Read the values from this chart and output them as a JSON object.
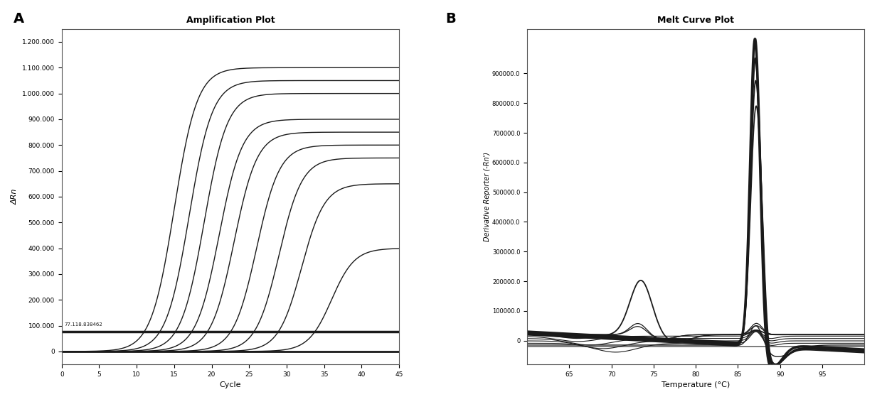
{
  "panel_A": {
    "title": "Amplification Plot",
    "xlabel": "Cycle",
    "ylabel": "ΔRn",
    "xlim": [
      0,
      45
    ],
    "ylim": [
      -50000,
      1250000
    ],
    "yticks": [
      0,
      100000,
      200000,
      300000,
      400000,
      500000,
      600000,
      700000,
      800000,
      900000,
      1000000,
      1100000,
      1200000
    ],
    "xticks": [
      0,
      5,
      10,
      15,
      20,
      25,
      30,
      35,
      40,
      45
    ],
    "threshold_y": 77118,
    "threshold_label": "77.118.838462",
    "num_curves": 9,
    "curve_shifts": [
      15,
      17,
      19,
      21,
      23,
      26,
      29,
      32,
      36
    ],
    "curve_plateaus": [
      1100000,
      1050000,
      1000000,
      900000,
      850000,
      800000,
      750000,
      650000,
      400000
    ],
    "threshold_lw": 2.5,
    "baseline_lw": 2.0,
    "color": "#1a1a1a"
  },
  "panel_B": {
    "title": "Melt Curve Plot",
    "xlabel": "Temperature (°C)",
    "ylabel": "Derivative Reporter (-Rn')",
    "xlim": [
      60,
      100
    ],
    "ylim": [
      -80000,
      1050000
    ],
    "xticks": [
      65.0,
      70.0,
      75.0,
      80.0,
      85.0,
      90.0,
      95.0
    ],
    "ytick_vals": [
      0,
      100000,
      200000,
      300000,
      400000,
      500000,
      600000,
      700000,
      800000,
      900000
    ],
    "ytick_labels": [
      "0",
      "100000.0",
      "200000.0",
      "300000.0",
      "400000.0",
      "500000.0",
      "600000.0",
      "700000.0",
      "800000.0",
      "900000.0"
    ],
    "color": "#1a1a1a"
  }
}
